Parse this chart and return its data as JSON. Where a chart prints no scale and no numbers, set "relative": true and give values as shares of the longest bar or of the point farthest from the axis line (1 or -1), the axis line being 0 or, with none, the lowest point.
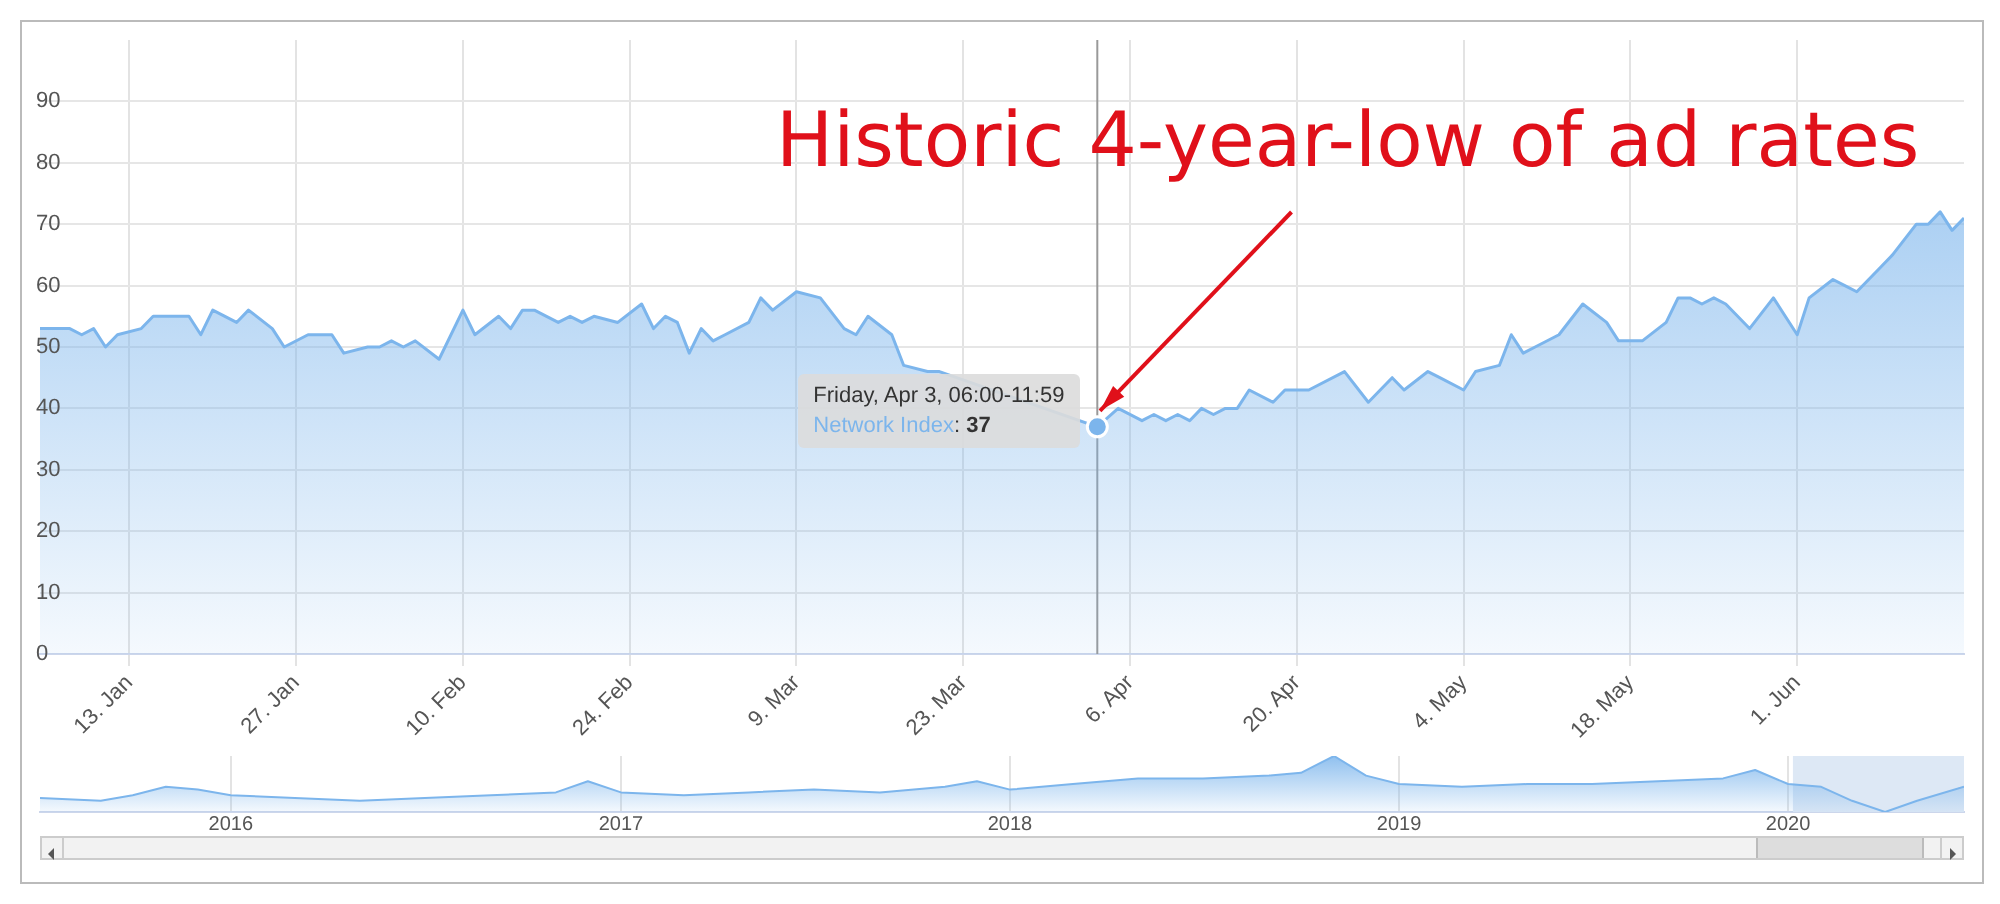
{
  "chart_data": [
    {
      "type": "area",
      "x": [
        "2020-01-05T12:00",
        "2020-01-08",
        "2020-01-09",
        "2020-01-10",
        "2020-01-11",
        "2020-01-12",
        "2020-01-14",
        "2020-01-15",
        "2020-01-18",
        "2020-01-19",
        "2020-01-20",
        "2020-01-22",
        "2020-01-23",
        "2020-01-25",
        "2020-01-26",
        "2020-01-28",
        "2020-01-30",
        "2020-01-31",
        "2020-02-02",
        "2020-02-03",
        "2020-02-04",
        "2020-02-05",
        "2020-02-06",
        "2020-02-08",
        "2020-02-10",
        "2020-02-11",
        "2020-02-13",
        "2020-02-14",
        "2020-02-15",
        "2020-02-16",
        "2020-02-18",
        "2020-02-19",
        "2020-02-20",
        "2020-02-21",
        "2020-02-23",
        "2020-02-25",
        "2020-02-26",
        "2020-02-27",
        "2020-02-28",
        "2020-02-29",
        "2020-03-01",
        "2020-03-02",
        "2020-03-03",
        "2020-03-05",
        "2020-03-06",
        "2020-03-07",
        "2020-03-09",
        "2020-03-11",
        "2020-03-13",
        "2020-03-14",
        "2020-03-15",
        "2020-03-17",
        "2020-03-18",
        "2020-03-20",
        "2020-03-21",
        "2020-03-22",
        "2020-03-25",
        "2020-03-28",
        "2020-03-31",
        "2020-04-01",
        "2020-04-03T06:00",
        "2020-04-05",
        "2020-04-07",
        "2020-04-08",
        "2020-04-09",
        "2020-04-10",
        "2020-04-11",
        "2020-04-12",
        "2020-04-13",
        "2020-04-14",
        "2020-04-15",
        "2020-04-16",
        "2020-04-18",
        "2020-04-19",
        "2020-04-21",
        "2020-04-24",
        "2020-04-26",
        "2020-04-28",
        "2020-04-29",
        "2020-05-01",
        "2020-05-02",
        "2020-05-04",
        "2020-05-05",
        "2020-05-07",
        "2020-05-08",
        "2020-05-09",
        "2020-05-10",
        "2020-05-12",
        "2020-05-14",
        "2020-05-16",
        "2020-05-17",
        "2020-05-19",
        "2020-05-21",
        "2020-05-22",
        "2020-05-23",
        "2020-05-24",
        "2020-05-25",
        "2020-05-26",
        "2020-05-28",
        "2020-05-30",
        "2020-06-01",
        "2020-06-02",
        "2020-06-04",
        "2020-06-05",
        "2020-06-06",
        "2020-06-08",
        "2020-06-09",
        "2020-06-11",
        "2020-06-12",
        "2020-06-13",
        "2020-06-14",
        "2020-06-15"
      ],
      "series": [
        {
          "color": "#7cb5ec",
          "values": [
            53,
            53,
            52,
            53,
            50,
            52,
            53,
            55,
            55,
            52,
            56,
            54,
            56,
            53,
            50,
            52,
            52,
            49,
            50,
            50,
            51,
            50,
            51,
            48,
            56,
            52,
            55,
            53,
            56,
            56,
            54,
            55,
            54,
            55,
            54,
            57,
            53,
            55,
            54,
            49,
            53,
            51,
            52,
            54,
            58,
            56,
            59,
            58,
            53,
            52,
            55,
            52,
            47,
            46,
            46,
            null,
            null,
            null,
            null,
            null,
            37,
            40,
            38,
            39,
            38,
            39,
            38,
            40,
            39,
            40,
            40,
            43,
            41,
            43,
            43,
            46,
            41,
            45,
            43,
            46,
            45,
            43,
            46,
            47,
            52,
            49,
            50,
            52,
            57,
            54,
            51,
            51,
            54,
            58,
            58,
            57,
            58,
            57,
            53,
            58,
            52,
            58,
            61,
            60,
            59,
            63,
            65,
            70,
            70,
            72,
            69,
            71
          ]
        }
      ],
      "xlim": [
        "2020-01-05T12:00",
        "2020-06-15"
      ],
      "xticks": [
        {
          "value": "2020-01-13",
          "label": "13. Jan"
        },
        {
          "value": "2020-01-27",
          "label": "27. Jan"
        },
        {
          "value": "2020-02-10",
          "label": "10. Feb"
        },
        {
          "value": "2020-02-24",
          "label": "24. Feb"
        },
        {
          "value": "2020-03-09",
          "label": "9. Mar"
        },
        {
          "value": "2020-03-23",
          "label": "23. Mar"
        },
        {
          "value": "2020-04-06",
          "label": "6. Apr"
        },
        {
          "value": "2020-04-20",
          "label": "20. Apr"
        },
        {
          "value": "2020-05-04",
          "label": "4. May"
        },
        {
          "value": "2020-05-18",
          "label": "18. May"
        },
        {
          "value": "2020-06-01",
          "label": "1. Jun"
        }
      ],
      "ylim": [
        0,
        100
      ],
      "yticks": [
        0,
        10,
        20,
        30,
        40,
        50,
        60,
        70,
        80,
        90
      ],
      "grid": true,
      "ref_lines": [
        {
          "axis": "x",
          "value": "2020-04-03T06:00",
          "color": "#999999"
        }
      ],
      "annotations": [
        {
          "text": "Historic 4-year-low of ad rates",
          "x": "2020-04-03T06:00",
          "y": 37
        },
        {
          "text": "Friday, Apr 3, 06:00-11:59",
          "x": "2020-04-03T06:00",
          "y": 37
        },
        "Network Index: 37"
      ]
    },
    {
      "type": "area",
      "relative": true,
      "x": [
        "2015-07-06",
        "2015-09-01",
        "2015-10-01",
        "2015-11-01",
        "2015-12-01",
        "2016-01-01",
        "2016-03-01",
        "2016-05-01",
        "2016-07-01",
        "2016-09-01",
        "2016-11-01",
        "2016-12-01",
        "2017-01-01",
        "2017-03-01",
        "2017-05-01",
        "2017-07-01",
        "2017-09-01",
        "2017-11-01",
        "2017-12-01",
        "2018-01-01",
        "2018-03-01",
        "2018-05-01",
        "2018-07-01",
        "2018-09-01",
        "2018-10-01",
        "2018-11-01",
        "2018-12-01",
        "2019-01-01",
        "2019-03-01",
        "2019-05-01",
        "2019-07-01",
        "2019-09-01",
        "2019-11-01",
        "2019-12-01",
        "2020-01-01",
        "2020-02-01",
        "2020-03-01",
        "2020-04-01",
        "2020-05-01",
        "2020-06-14"
      ],
      "series": [
        {
          "color": "#7cb5ec",
          "values": [
            0.25,
            0.2,
            0.3,
            0.45,
            0.4,
            0.3,
            0.25,
            0.2,
            0.25,
            0.3,
            0.35,
            0.55,
            0.35,
            0.3,
            0.35,
            0.4,
            0.35,
            0.45,
            0.55,
            0.4,
            0.5,
            0.6,
            0.6,
            0.65,
            0.7,
            1,
            0.65,
            0.5,
            0.45,
            0.5,
            0.5,
            0.55,
            0.6,
            0.75,
            0.5,
            0.45,
            0.2,
            0,
            0.2,
            0.45
          ]
        }
      ],
      "xlim": [
        "2015-07-06",
        "2020-06-14"
      ],
      "xticks": [
        {
          "value": "2016-01-01",
          "label": "2016"
        },
        {
          "value": "2017-01-01",
          "label": "2017"
        },
        {
          "value": "2018-01-01",
          "label": "2018"
        },
        {
          "value": "2019-01-01",
          "label": "2019"
        },
        {
          "value": "2020-01-01",
          "label": "2020"
        }
      ],
      "grid": "x",
      "tick_labels": "x",
      "bands": [
        {
          "axis": "x",
          "from": "2020-01-05T12:00",
          "to": "2020-06-14",
          "color": "#dde8f5"
        }
      ]
    }
  ]
}
